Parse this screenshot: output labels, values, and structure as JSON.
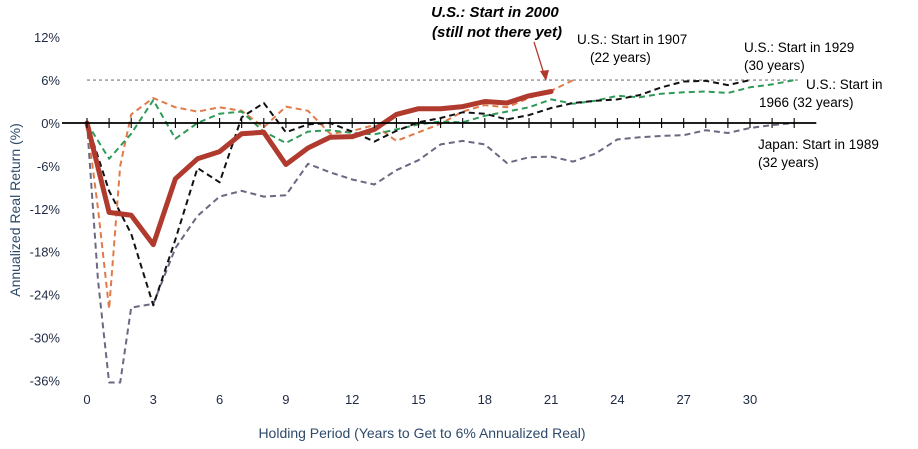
{
  "chart_data": {
    "type": "line",
    "title": "",
    "xlabel": "Holding Period (Years to Get to 6% Annualized Real)",
    "ylabel": "Annualized Real Return (%)",
    "xlim": [
      -1,
      33
    ],
    "ylim": [
      -36,
      12
    ],
    "x_ticks": [
      0,
      3,
      6,
      9,
      12,
      15,
      18,
      21,
      24,
      27,
      30
    ],
    "x_tick_labels": [
      "0",
      "3",
      "6",
      "9",
      "12",
      "15",
      "18",
      "21",
      "24",
      "27",
      "30"
    ],
    "y_ticks": [
      12,
      6,
      0,
      -6,
      -12,
      -18,
      -24,
      -30,
      -36
    ],
    "y_tick_labels": [
      "12%",
      "6%",
      "0%",
      "-6%",
      "-12%",
      "-18%",
      "-24%",
      "-30%",
      "-36%"
    ],
    "target_line": 6,
    "series": [
      {
        "name": "Japan: Start in 1989 (32 years)",
        "color": "#6b6882",
        "style": "dashed",
        "x": [
          0,
          0.5,
          1,
          1.5,
          2,
          3,
          4,
          5,
          6,
          7,
          8,
          9,
          10,
          11,
          12,
          13,
          14,
          15,
          16,
          17,
          18,
          19,
          20,
          21,
          22,
          23,
          24,
          25,
          26,
          27,
          28,
          29,
          30,
          31,
          32
        ],
        "values": [
          0,
          -22,
          -36.3,
          -36.3,
          -25.8,
          -25.3,
          -17.5,
          -13,
          -10.3,
          -9.5,
          -10.3,
          -10.1,
          -5.7,
          -6.9,
          -7.9,
          -8.6,
          -6.6,
          -5.2,
          -3,
          -2.5,
          -3,
          -5.6,
          -4.8,
          -4.7,
          -5.4,
          -4.3,
          -2.3,
          -2,
          -1.8,
          -1.7,
          -1,
          -1.4,
          -0.7,
          -0.3,
          0
        ]
      },
      {
        "name": "U.S.: Start in 1907 (22 years)",
        "color": "#e07b49",
        "style": "dashed",
        "x": [
          0,
          0.5,
          1,
          1.5,
          2,
          3,
          4,
          5,
          6,
          7,
          8,
          9,
          10,
          11,
          12,
          13,
          14,
          15,
          16,
          17,
          18,
          19,
          20,
          21,
          22
        ],
        "values": [
          0,
          -12,
          -26,
          -6,
          1.2,
          3.5,
          2.2,
          1.6,
          2.2,
          1.7,
          -0.6,
          2.3,
          1.7,
          -1.5,
          -1.1,
          -0.3,
          -2.5,
          -1.3,
          -0.1,
          1.6,
          2.5,
          2.2,
          3.5,
          4.5,
          6
        ]
      },
      {
        "name": "U.S.: Start in 1966 (32 years)",
        "color": "#2e9a57",
        "style": "dashed",
        "x": [
          0,
          1,
          2,
          3,
          4,
          5,
          6,
          7,
          8,
          9,
          10,
          11,
          12,
          13,
          14,
          15,
          16,
          17,
          18,
          19,
          20,
          21,
          22,
          23,
          24,
          25,
          26,
          27,
          28,
          29,
          30,
          31,
          32
        ],
        "values": [
          0,
          -5,
          -1.5,
          3.2,
          -2.2,
          0,
          1.3,
          1.6,
          -1.2,
          -2.8,
          -1.2,
          -1,
          -1.4,
          -1.6,
          -0.9,
          -0.2,
          0.2,
          0.1,
          1,
          1.6,
          2.2,
          3.3,
          2.7,
          3.1,
          3.8,
          3.6,
          4.1,
          4.3,
          4.4,
          4.2,
          5,
          5.4,
          6
        ]
      },
      {
        "name": "U.S.: Start in 1929 (30 years)",
        "color": "#111111",
        "style": "dashed",
        "x": [
          0,
          1,
          2,
          3,
          4,
          5,
          6,
          7,
          8,
          9,
          10,
          11,
          12,
          13,
          14,
          15,
          16,
          17,
          18,
          19,
          20,
          21,
          22,
          23,
          24,
          25,
          26,
          27,
          28,
          29,
          30
        ],
        "values": [
          0,
          -9.5,
          -15.5,
          -25.5,
          -16.3,
          -6.3,
          -8.3,
          0.8,
          2.8,
          -1.3,
          -0.2,
          0,
          -1.2,
          -2.6,
          -1.1,
          0.1,
          0.7,
          1.5,
          1.3,
          0.5,
          1.1,
          2.1,
          2.8,
          3.1,
          3.3,
          3.9,
          5,
          5.8,
          5.9,
          5.3,
          6
        ]
      },
      {
        "name": "U.S.: Start in 2000 (still not there yet)",
        "color": "#b03a2e",
        "style": "solid",
        "x": [
          0,
          1,
          2,
          3,
          4,
          5,
          6,
          7,
          8,
          9,
          10,
          11,
          12,
          13,
          14,
          15,
          16,
          17,
          18,
          19,
          20,
          21
        ],
        "values": [
          0,
          -12.5,
          -12.9,
          -17,
          -7.8,
          -5,
          -4,
          -1.5,
          -1.3,
          -5.8,
          -3.5,
          -2,
          -1.9,
          -0.9,
          1.2,
          2,
          2,
          2.3,
          3,
          2.8,
          3.8,
          4.4
        ]
      }
    ],
    "annotations": [
      {
        "series": 4,
        "lines": [
          "U.S.: Start in 2000",
          "(still not there yet)"
        ],
        "color": "#b03a2e"
      },
      {
        "series": 1,
        "lines": [
          "U.S.: Start in 1907",
          "(22 years)"
        ],
        "color": "#e07b49"
      },
      {
        "series": 3,
        "lines": [
          "U.S.: Start in 1929",
          "(30 years)"
        ],
        "color": "#111111"
      },
      {
        "series": 2,
        "lines": [
          "U.S.: Start in",
          "1966 (32 years)"
        ],
        "color": "#2e9a57"
      },
      {
        "series": 0,
        "lines": [
          "Japan: Start in 1989",
          "(32 years)"
        ],
        "color": "#6b6882"
      }
    ]
  }
}
